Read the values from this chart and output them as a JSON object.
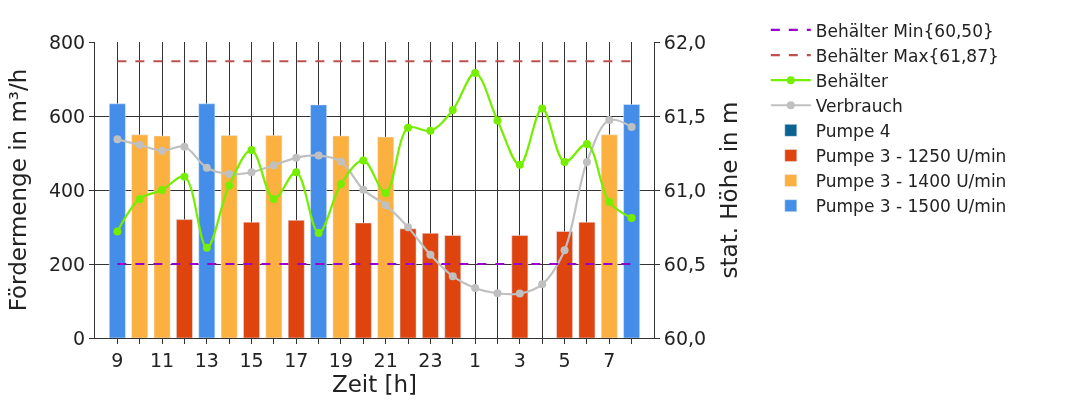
{
  "chart_data": {
    "type": "bar",
    "xlabel": "Zeit [h]",
    "ylabel": "Fördermenge in m³/h",
    "y2label": "stat. Höhe in m",
    "categories": [
      "9",
      null,
      "11",
      null,
      "13",
      null,
      "15",
      null,
      "17",
      null,
      "19",
      null,
      "21",
      null,
      "23",
      null,
      "1",
      null,
      "3",
      null,
      "5",
      null,
      "7",
      null
    ],
    "ylim": [
      0,
      800
    ],
    "yticks": [
      0,
      200,
      400,
      600,
      800
    ],
    "y2lim": [
      60,
      62
    ],
    "y2ticks": [
      {
        "value": 60,
        "label": "60,0"
      },
      {
        "value": 60.5,
        "label": "60,5"
      },
      {
        "value": 61,
        "label": "61,0"
      },
      {
        "value": 61.5,
        "label": "61,5"
      },
      {
        "value": 62,
        "label": "62,0"
      }
    ],
    "grid": true,
    "legend": "right",
    "series": [
      {
        "name": "Behälter Min{60,50}",
        "type": "line",
        "axis": "y2",
        "color": "#9900cc",
        "line_style": "dashed",
        "marker": "none",
        "values": [
          60.5,
          60.5,
          60.5,
          60.5,
          60.5,
          60.5,
          60.5,
          60.5,
          60.5,
          60.5,
          60.5,
          60.5,
          60.5,
          60.5,
          60.5,
          60.5,
          60.5,
          60.5,
          60.5,
          60.5,
          60.5,
          60.5,
          60.5,
          60.5
        ]
      },
      {
        "name": "Behälter Max{61,87}",
        "type": "line",
        "axis": "y2",
        "color": "#c0504d",
        "line_style": "dashed",
        "marker": "none",
        "values": [
          61.87,
          61.87,
          61.87,
          61.87,
          61.87,
          61.87,
          61.87,
          61.87,
          61.87,
          61.87,
          61.87,
          61.87,
          61.87,
          61.87,
          61.87,
          61.87,
          61.87,
          61.87,
          61.87,
          61.87,
          61.87,
          61.87,
          61.87,
          61.87
        ]
      },
      {
        "name": "Behälter",
        "type": "line",
        "axis": "y2",
        "color": "#76ee00",
        "line_style": "solid",
        "marker": "circle",
        "values": [
          60.72,
          60.94,
          61.0,
          61.09,
          60.61,
          61.03,
          61.27,
          60.94,
          61.12,
          60.71,
          61.04,
          61.2,
          60.98,
          61.42,
          61.4,
          61.54,
          61.79,
          61.47,
          61.17,
          61.55,
          61.19,
          61.31,
          60.92,
          60.81
        ]
      },
      {
        "name": "Verbrauch",
        "type": "line",
        "color": "#c0c0c0",
        "line_style": "solid",
        "marker": "circle",
        "values": [
          537,
          522,
          506,
          517,
          460,
          443,
          448,
          467,
          487,
          493,
          477,
          401,
          359,
          299,
          225,
          167,
          135,
          121,
          120,
          145,
          237,
          476,
          589,
          570
        ]
      },
      {
        "name": "Pumpe 4",
        "color": "#0b6391",
        "values": [
          null,
          null,
          null,
          null,
          null,
          null,
          null,
          null,
          null,
          null,
          null,
          null,
          null,
          null,
          null,
          null,
          null,
          null,
          null,
          null,
          null,
          null,
          null,
          null
        ]
      },
      {
        "name": "Pumpe 3 - 1250 U/min",
        "color": "#e0440e",
        "values": [
          null,
          null,
          null,
          320,
          null,
          null,
          313,
          null,
          318,
          null,
          null,
          311,
          null,
          295,
          283,
          277,
          null,
          null,
          277,
          null,
          288,
          313,
          null,
          null
        ]
      },
      {
        "name": "Pumpe 3 - 1400 U/min",
        "color": "#fbb040",
        "values": [
          null,
          549,
          546,
          null,
          null,
          547,
          null,
          547,
          null,
          null,
          546,
          null,
          543,
          null,
          null,
          null,
          null,
          null,
          null,
          null,
          null,
          null,
          549,
          null
        ]
      },
      {
        "name": "Pumpe 3 - 1500 U/min",
        "color": "#448de8",
        "values": [
          633,
          null,
          null,
          null,
          633,
          null,
          null,
          null,
          null,
          630,
          null,
          null,
          null,
          null,
          null,
          null,
          null,
          null,
          null,
          null,
          null,
          null,
          null,
          631
        ]
      }
    ]
  }
}
